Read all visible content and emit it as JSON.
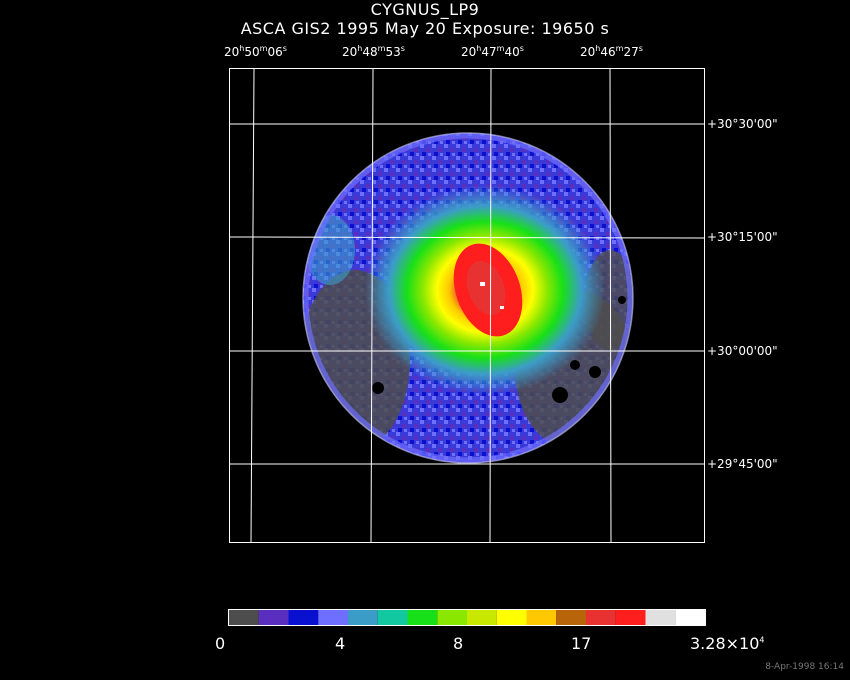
{
  "header": {
    "object": "CYGNUS_LP9",
    "subtitle": "ASCA GIS2   1995 May 20    Exposure: 19650 s"
  },
  "ra_labels": [
    {
      "h": "20",
      "m": "50",
      "s": "06"
    },
    {
      "h": "20",
      "m": "48",
      "s": "53"
    },
    {
      "h": "20",
      "m": "47",
      "s": "40"
    },
    {
      "h": "20",
      "m": "46",
      "s": "27"
    }
  ],
  "dec_labels": [
    "+30°30'00\"",
    "+30°15'00\"",
    "+30°00'00\"",
    "+29°45'00\""
  ],
  "colorbar": {
    "colors": [
      "#4d4d4d",
      "#5a2fbf",
      "#0a10d0",
      "#6e6eff",
      "#3c9cc8",
      "#12c8a0",
      "#18e018",
      "#8ae800",
      "#c8e800",
      "#ffff00",
      "#ffc800",
      "#b8640a",
      "#e83232",
      "#ff1e1e",
      "#e0e0e0",
      "#ffffff"
    ],
    "ticks": [
      "0",
      "4",
      "8",
      "17"
    ],
    "max_label": "3.28×10",
    "max_exp": "4"
  },
  "footer": "8-Apr-1998 16:14"
}
